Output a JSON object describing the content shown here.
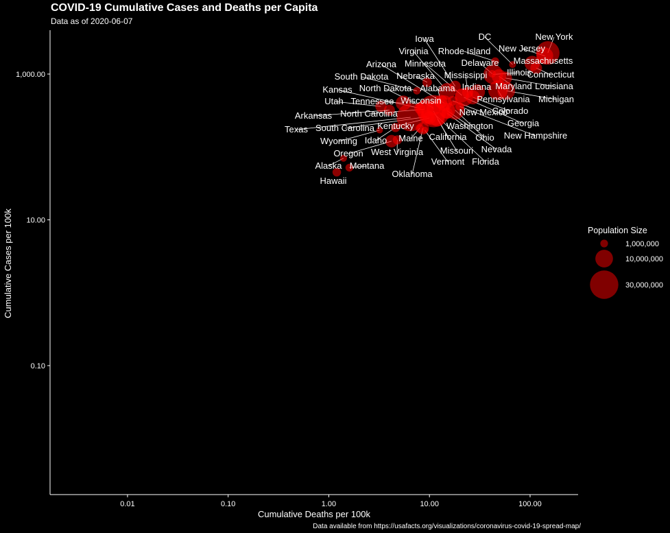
{
  "chart_data": {
    "type": "scatter",
    "title": "COVID-19 Cumulative Cases and Deaths per Capita",
    "subtitle": "Data as of 2020-06-07",
    "caption": "Data available from https://usafacts.org/visualizations/coronavirus-covid-19-spread-map/",
    "xlabel": "Cumulative Deaths per 100k",
    "ylabel": "Cumulative Cases per 100k",
    "x_scale": "log10",
    "y_scale": "log10",
    "xlim": [
      0.0017,
      300
    ],
    "ylim": [
      0.0017,
      4000
    ],
    "x_ticks": [
      0.01,
      0.1,
      1,
      10,
      100
    ],
    "x_tick_labels": [
      "0.01",
      "0.10",
      "1.00",
      "10.00",
      "100.00"
    ],
    "y_ticks": [
      0.1,
      10,
      1000
    ],
    "y_tick_labels": [
      "0.10",
      "10.00",
      "1,000.00"
    ],
    "grid": false,
    "point_color": "#ff0000",
    "legend": {
      "title": "Population Size",
      "placement": "right",
      "entries": [
        {
          "label": "1,000,000",
          "population": 1000000
        },
        {
          "label": "10,000,000",
          "population": 10000000
        },
        {
          "label": "30,000,000",
          "population": 30000000
        }
      ]
    },
    "points": [
      {
        "state": "New York",
        "deaths": 150,
        "cases": 1950,
        "population": 19450000
      },
      {
        "state": "New Jersey",
        "deaths": 140,
        "cases": 1780,
        "population": 8880000
      },
      {
        "state": "DC",
        "deaths": 67,
        "cases": 1350,
        "population": 705000
      },
      {
        "state": "Massachusetts",
        "deaths": 105,
        "cases": 1400,
        "population": 6890000
      },
      {
        "state": "Connecticut",
        "deaths": 115,
        "cases": 1210,
        "population": 3560000
      },
      {
        "state": "Rhode Island",
        "deaths": 45,
        "cases": 1500,
        "population": 1060000
      },
      {
        "state": "Illinois",
        "deaths": 43,
        "cases": 990,
        "population": 12670000
      },
      {
        "state": "Louisiana",
        "deaths": 57,
        "cases": 880,
        "population": 4650000
      },
      {
        "state": "Delaware",
        "deaths": 42,
        "cases": 1010,
        "population": 973000
      },
      {
        "state": "Maryland",
        "deaths": 49,
        "cases": 930,
        "population": 6040000
      },
      {
        "state": "Michigan",
        "deaths": 58,
        "cases": 590,
        "population": 9990000
      },
      {
        "state": "Pennsylvania",
        "deaths": 48,
        "cases": 600,
        "population": 12800000
      },
      {
        "state": "Nebraska",
        "deaths": 9.5,
        "cases": 770,
        "population": 1930000
      },
      {
        "state": "Iowa",
        "deaths": 18,
        "cases": 680,
        "population": 3150000
      },
      {
        "state": "Indiana",
        "deaths": 30,
        "cases": 570,
        "population": 6730000
      },
      {
        "state": "Mississippi",
        "deaths": 24,
        "cases": 560,
        "population": 2980000
      },
      {
        "state": "Minnesota",
        "deaths": 21,
        "cases": 510,
        "population": 5640000
      },
      {
        "state": "Virginia",
        "deaths": 15,
        "cases": 580,
        "population": 8540000
      },
      {
        "state": "Colorado",
        "deaths": 27,
        "cases": 480,
        "population": 5760000
      },
      {
        "state": "Georgia",
        "deaths": 22,
        "cases": 480,
        "population": 10620000
      },
      {
        "state": "New Hampshire",
        "deaths": 20,
        "cases": 360,
        "population": 1360000
      },
      {
        "state": "South Dakota",
        "deaths": 7.5,
        "cases": 590,
        "population": 885000
      },
      {
        "state": "Arizona",
        "deaths": 14,
        "cases": 400,
        "population": 7280000
      },
      {
        "state": "New Mexico",
        "deaths": 17,
        "cases": 430,
        "population": 2100000
      },
      {
        "state": "Alabama",
        "deaths": 13,
        "cases": 420,
        "population": 4900000
      },
      {
        "state": "Ohio",
        "deaths": 18,
        "cases": 320,
        "population": 11690000
      },
      {
        "state": "Washington",
        "deaths": 15,
        "cases": 315,
        "population": 7610000
      },
      {
        "state": "Nevada",
        "deaths": 15,
        "cases": 290,
        "population": 3080000
      },
      {
        "state": "Tennessee",
        "deaths": 5.5,
        "cases": 400,
        "population": 6830000
      },
      {
        "state": "North Dakota",
        "deaths": 8,
        "cases": 370,
        "population": 762000
      },
      {
        "state": "Utah",
        "deaths": 3.3,
        "cases": 360,
        "population": 3210000
      },
      {
        "state": "Kansas",
        "deaths": 8,
        "cases": 340,
        "population": 2910000
      },
      {
        "state": "Wisconsin",
        "deaths": 11,
        "cases": 340,
        "population": 5820000
      },
      {
        "state": "Missouri",
        "deaths": 12,
        "cases": 240,
        "population": 6140000
      },
      {
        "state": "North Carolina",
        "deaths": 9,
        "cases": 330,
        "population": 10490000
      },
      {
        "state": "Arkansas",
        "deaths": 4,
        "cases": 320,
        "population": 3020000
      },
      {
        "state": "Florida",
        "deaths": 11,
        "cases": 290,
        "population": 21480000
      },
      {
        "state": "California",
        "deaths": 11,
        "cases": 310,
        "population": 39510000
      },
      {
        "state": "South Carolina",
        "deaths": 9.5,
        "cases": 260,
        "population": 5150000
      },
      {
        "state": "Texas",
        "deaths": 6.5,
        "cases": 255,
        "population": 29000000
      },
      {
        "state": "Kentucky",
        "deaths": 10,
        "cases": 250,
        "population": 4470000
      },
      {
        "state": "Wyoming",
        "deaths": 3.2,
        "cases": 170,
        "population": 579000
      },
      {
        "state": "Idaho",
        "deaths": 4.6,
        "cases": 185,
        "population": 1790000
      },
      {
        "state": "Maine",
        "deaths": 8,
        "cases": 180,
        "population": 1340000
      },
      {
        "state": "Vermont",
        "deaths": 9,
        "cases": 170,
        "population": 624000
      },
      {
        "state": "Oregon",
        "deaths": 4.2,
        "cases": 120,
        "population": 4220000
      },
      {
        "state": "West Virginia",
        "deaths": 4.8,
        "cases": 125,
        "population": 1790000
      },
      {
        "state": "Oklahoma",
        "deaths": 8.6,
        "cases": 180,
        "population": 3960000
      },
      {
        "state": "Montana",
        "deaths": 1.6,
        "cases": 52,
        "population": 1070000
      },
      {
        "state": "Alaska",
        "deaths": 1.4,
        "cases": 70,
        "population": 732000
      },
      {
        "state": "Hawaii",
        "deaths": 1.2,
        "cases": 45,
        "population": 1420000
      }
    ]
  }
}
